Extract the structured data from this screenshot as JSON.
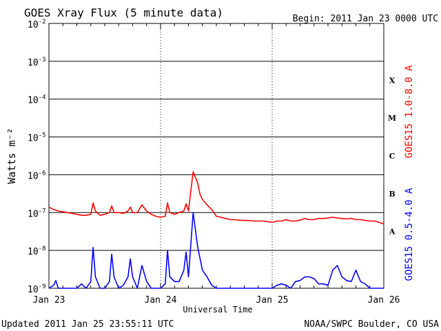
{
  "header": {
    "title": "GOES Xray Flux (5 minute data)",
    "begin": "Begin:  2011 Jan 23 0000 UTC"
  },
  "footer": {
    "updated": "Updated 2011 Jan 25 23:55:11 UTC",
    "credit": "NOAA/SWPC Boulder, CO USA"
  },
  "chart_data": {
    "type": "line",
    "title": "GOES Xray Flux (5 minute data)",
    "xlabel": "Universal Time",
    "ylabel": "Watts m⁻²",
    "yscale": "log",
    "ylim": [
      1e-09,
      0.01
    ],
    "xlim": [
      0,
      72
    ],
    "x_unit": "hours since 2011 Jan 23 0000 UTC",
    "x_ticks": [
      {
        "x": 0,
        "label": "Jan 23"
      },
      {
        "x": 24,
        "label": "Jan 24"
      },
      {
        "x": 48,
        "label": "Jan 25"
      },
      {
        "x": 72,
        "label": "Jan 26"
      }
    ],
    "y_ticks": [
      {
        "exp": -2,
        "label": "10",
        "sup": "-2"
      },
      {
        "exp": -3,
        "label": "10",
        "sup": "-3"
      },
      {
        "exp": -4,
        "label": "10",
        "sup": "-4"
      },
      {
        "exp": -5,
        "label": "10",
        "sup": "-5"
      },
      {
        "exp": -6,
        "label": "10",
        "sup": "-6"
      },
      {
        "exp": -7,
        "label": "10",
        "sup": "-7"
      },
      {
        "exp": -8,
        "label": "10",
        "sup": "-8"
      },
      {
        "exp": -9,
        "label": "10",
        "sup": "-9"
      }
    ],
    "flare_classes": [
      {
        "label": "X",
        "exp": -3.5
      },
      {
        "label": "M",
        "exp": -4.5
      },
      {
        "label": "C",
        "exp": -5.5
      },
      {
        "label": "B",
        "exp": -6.5
      },
      {
        "label": "A",
        "exp": -7.5
      }
    ],
    "grid": true,
    "series": [
      {
        "name": "GOES15 1.0-8.0 A",
        "color": "#ff0000",
        "x": [
          0,
          1,
          2,
          3,
          4,
          5,
          6,
          7,
          8,
          9,
          9.5,
          10,
          11,
          12,
          13,
          13.5,
          14,
          15,
          16,
          17,
          17.5,
          18,
          19,
          20,
          21,
          22,
          23,
          24,
          25,
          25.5,
          26,
          27,
          28,
          29,
          29.5,
          30,
          31,
          32,
          32.5,
          33,
          34,
          35,
          36,
          37,
          38,
          39,
          40,
          41,
          42,
          43,
          44,
          45,
          46,
          47,
          48,
          49,
          50,
          51,
          52,
          53,
          54,
          55,
          56,
          57,
          58,
          59,
          60,
          61,
          62,
          63,
          64,
          65,
          66,
          67,
          68,
          69,
          70,
          71,
          72
        ],
        "y": [
          1.4e-07,
          1.2e-07,
          1.1e-07,
          1.05e-07,
          1e-07,
          9.5e-08,
          9e-08,
          8.5e-08,
          8.5e-08,
          9e-08,
          1.8e-07,
          1.1e-07,
          8.5e-08,
          9e-08,
          1e-07,
          1.5e-07,
          1e-07,
          1e-07,
          9.5e-08,
          1.1e-07,
          1.4e-07,
          1e-07,
          1e-07,
          1.6e-07,
          1.1e-07,
          9e-08,
          8e-08,
          7.5e-08,
          8e-08,
          1.8e-07,
          1e-07,
          9e-08,
          1e-07,
          1.1e-07,
          1.7e-07,
          1.1e-07,
          1.2e-06,
          6e-07,
          3e-07,
          2.2e-07,
          1.6e-07,
          1.2e-07,
          8e-08,
          7.5e-08,
          7e-08,
          6.5e-08,
          6.5e-08,
          6.3e-08,
          6.2e-08,
          6.2e-08,
          6e-08,
          6e-08,
          6e-08,
          5.8e-08,
          5.5e-08,
          6e-08,
          6e-08,
          6.5e-08,
          6e-08,
          6e-08,
          6.3e-08,
          7e-08,
          6.5e-08,
          6.5e-08,
          7e-08,
          7e-08,
          7.2e-08,
          7.5e-08,
          7.2e-08,
          7e-08,
          6.8e-08,
          7e-08,
          6.5e-08,
          6.5e-08,
          6.2e-08,
          6e-08,
          6e-08,
          5.5e-08,
          5e-08
        ]
      },
      {
        "name": "GOES15 0.5-4.0 A",
        "color": "#0000ff",
        "x": [
          0,
          1,
          1.5,
          2,
          3,
          5,
          6,
          7,
          8,
          9,
          9.5,
          10,
          11,
          12,
          13,
          13.5,
          14,
          15,
          16,
          17,
          17.5,
          18,
          19,
          20,
          21,
          22,
          23,
          24,
          25,
          25.5,
          26,
          27,
          28,
          29,
          29.5,
          30,
          31,
          32,
          32.5,
          33,
          34,
          35,
          36,
          37,
          38,
          39,
          40,
          41,
          42,
          43,
          44,
          45,
          46,
          47,
          48,
          49,
          50,
          51,
          52,
          53,
          54,
          55,
          56,
          57,
          58,
          59,
          60,
          61,
          62,
          63,
          64,
          65,
          66,
          67,
          68,
          69,
          70,
          71,
          72
        ],
        "y": [
          1e-09,
          1.2e-09,
          1.6e-09,
          1e-09,
          1e-09,
          1e-09,
          1e-09,
          1.3e-09,
          1e-09,
          1.5e-09,
          1.2e-08,
          2e-09,
          1e-09,
          1e-09,
          1.5e-09,
          8e-09,
          2e-09,
          1e-09,
          1.2e-09,
          2e-09,
          6e-09,
          2e-09,
          1e-09,
          4e-09,
          1.5e-09,
          1e-09,
          1e-09,
          1e-09,
          1.3e-09,
          1e-08,
          2e-09,
          1.5e-09,
          1.5e-09,
          3e-09,
          9e-09,
          2e-09,
          1e-07,
          1.2e-08,
          6e-09,
          3e-09,
          2e-09,
          1.2e-09,
          1e-09,
          1e-09,
          1e-09,
          1e-09,
          1e-09,
          1e-09,
          1e-09,
          1e-09,
          1e-09,
          1e-09,
          1e-09,
          1e-09,
          1e-09,
          1.2e-09,
          1.3e-09,
          1.2e-09,
          1e-09,
          1.5e-09,
          1.6e-09,
          2e-09,
          2e-09,
          1.8e-09,
          1.3e-09,
          1.3e-09,
          1.2e-09,
          3e-09,
          4e-09,
          2e-09,
          1.6e-09,
          1.5e-09,
          3e-09,
          1.5e-09,
          1.3e-09,
          1e-09,
          1e-09,
          1e-09,
          1e-09
        ]
      }
    ]
  }
}
